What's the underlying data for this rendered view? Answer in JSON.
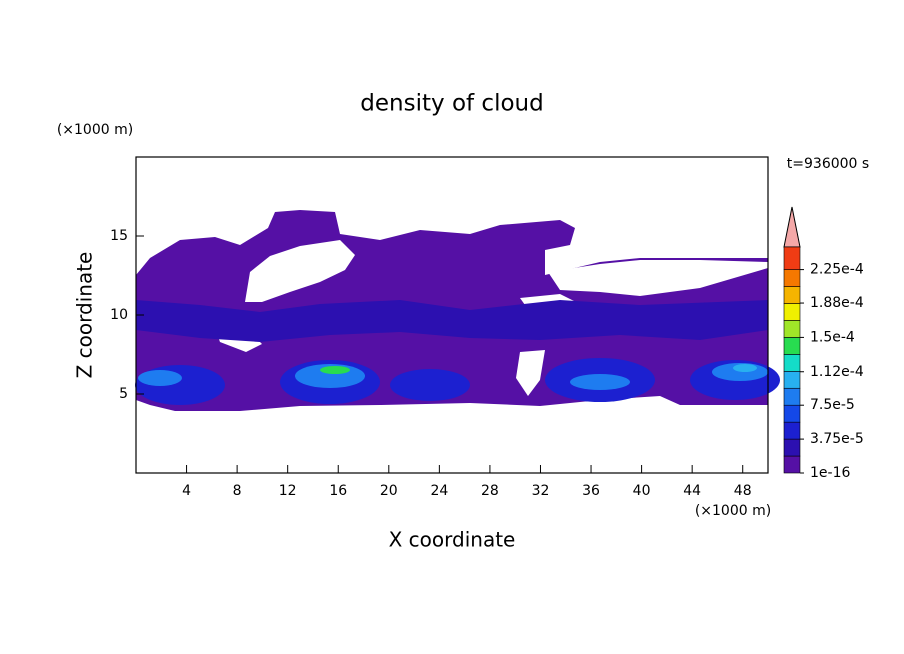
{
  "chart_data": {
    "type": "contour",
    "title": "density of cloud",
    "x_label": "X coordinate",
    "y_label": "Z coordinate",
    "x_unit": "(×1000 m)",
    "y_unit": "(×1000 m)",
    "annotation": "t=936000 s",
    "xlim": [
      0,
      50
    ],
    "xticks": [
      4,
      8,
      12,
      16,
      20,
      24,
      28,
      32,
      36,
      40,
      44,
      48
    ],
    "ylim": [
      0,
      20
    ],
    "yticks": [
      5,
      10,
      15
    ],
    "colorbar": {
      "clim": [
        0,
        0.00025
      ],
      "levels": [
        1e-16,
        1.875e-05,
        3.75e-05,
        5.625e-05,
        7.5e-05,
        9.375e-05,
        0.0001125,
        0.00013125,
        0.00015,
        0.00016875,
        0.0001875,
        0.00020625,
        0.000225
      ],
      "colors": [
        "#5510a5",
        "#2c10b0",
        "#1c20d0",
        "#1448e8",
        "#1e7cf0",
        "#28b0f0",
        "#14dcc8",
        "#28dc50",
        "#a0e628",
        "#f0f000",
        "#f5b400",
        "#f57800",
        "#f03c14"
      ],
      "ticks": [
        {
          "value": 1e-16,
          "label": "1e-16"
        },
        {
          "value": 3.75e-05,
          "label": "3.75e-5"
        },
        {
          "value": 7.5e-05,
          "label": "7.5e-5"
        },
        {
          "value": 0.000112,
          "label": "1.12e-4"
        },
        {
          "value": 0.00015,
          "label": "1.5e-4"
        },
        {
          "value": 0.000188,
          "label": "1.88e-4"
        },
        {
          "value": 0.000225,
          "label": "2.25e-4"
        }
      ]
    }
  }
}
